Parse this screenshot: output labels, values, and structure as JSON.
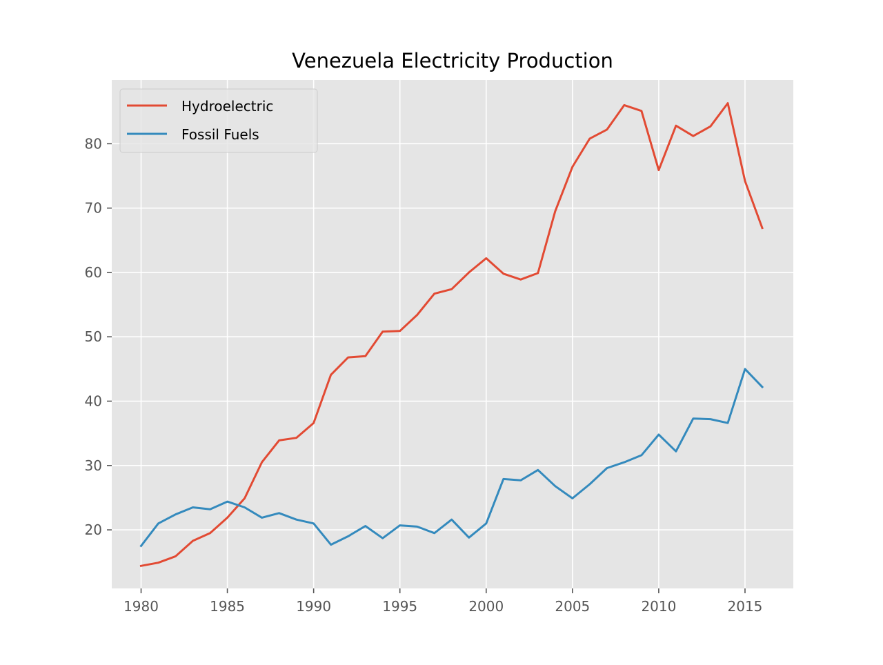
{
  "chart_data": {
    "type": "line",
    "title": "Venezuela Electricity Production",
    "xlabel": "",
    "ylabel": "",
    "x": [
      1980,
      1981,
      1982,
      1983,
      1984,
      1985,
      1986,
      1987,
      1988,
      1989,
      1990,
      1991,
      1992,
      1993,
      1994,
      1995,
      1996,
      1997,
      1998,
      1999,
      2000,
      2001,
      2002,
      2003,
      2004,
      2005,
      2006,
      2007,
      2008,
      2009,
      2010,
      2011,
      2012,
      2013,
      2014,
      2015,
      2016
    ],
    "xlim": [
      1978.3,
      2017.8
    ],
    "ylim": [
      10.9,
      89.9
    ],
    "x_ticks": [
      1980,
      1985,
      1990,
      1995,
      2000,
      2005,
      2010,
      2015
    ],
    "y_ticks": [
      20,
      30,
      40,
      50,
      60,
      70,
      80
    ],
    "grid": true,
    "legend_position": "top-left",
    "colors": {
      "background": "#e5e5e5",
      "grid": "#ffffff"
    },
    "series": [
      {
        "name": "Hydroelectric",
        "color": "#e24a33",
        "values": [
          14.4,
          14.9,
          15.9,
          18.3,
          19.5,
          21.9,
          24.9,
          30.5,
          33.9,
          34.3,
          36.6,
          44.1,
          46.8,
          47.0,
          50.8,
          50.9,
          53.4,
          56.7,
          57.4,
          60.0,
          62.2,
          59.8,
          58.9,
          59.9,
          69.5,
          76.4,
          80.8,
          82.2,
          86.0,
          85.1,
          75.9,
          82.8,
          81.2,
          82.7,
          86.3,
          74.2,
          66.9
        ]
      },
      {
        "name": "Fossil Fuels",
        "color": "#348abd",
        "values": [
          17.5,
          21.0,
          22.4,
          23.5,
          23.2,
          24.4,
          23.5,
          21.9,
          22.6,
          21.6,
          21.0,
          17.7,
          19.0,
          20.6,
          18.7,
          20.7,
          20.5,
          19.5,
          21.6,
          18.8,
          21.0,
          27.9,
          27.7,
          29.3,
          26.8,
          24.9,
          27.1,
          29.6,
          30.5,
          31.6,
          34.8,
          32.2,
          37.3,
          37.2,
          36.6,
          45.0,
          42.2
        ]
      }
    ]
  }
}
